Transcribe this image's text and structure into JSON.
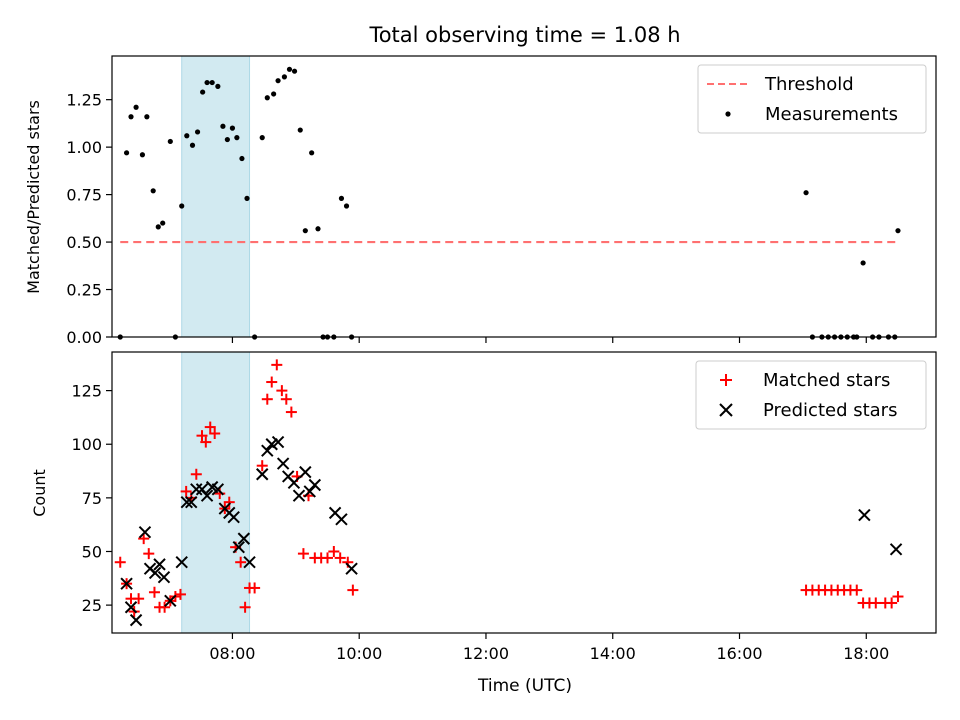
{
  "chart_data": [
    {
      "type": "scatter",
      "title": "Total observing time = 1.08 h",
      "ylabel": "Matched/Predicted stars",
      "xlabel": "",
      "xlim": [
        6.1,
        19.1
      ],
      "ylim": [
        0,
        1.48
      ],
      "ytick_values": [
        0,
        0.25,
        0.5,
        0.75,
        1.0,
        1.25
      ],
      "yticks": [
        "0.00",
        "0.25",
        "0.50",
        "0.75",
        "1.00",
        "1.25"
      ],
      "xtick_values": [
        6,
        8,
        10,
        12,
        14,
        16,
        18
      ],
      "xtick_labels_visible": false,
      "shaded_region": {
        "x0": 7.2,
        "x1": 8.27,
        "color": "#add8e6"
      },
      "legend": {
        "position": "top-right",
        "entries": [
          "Threshold",
          "Measurements"
        ]
      },
      "series": [
        {
          "name": "Threshold",
          "kind": "line",
          "style": "dashed",
          "color": "#ff7070",
          "x": [
            6.23,
            18.5
          ],
          "y": [
            0.5,
            0.5
          ]
        },
        {
          "name": "Measurements",
          "kind": "scatter",
          "color": "#000000",
          "x": [
            6.23,
            6.33,
            6.4,
            6.48,
            6.58,
            6.65,
            6.75,
            6.83,
            6.9,
            7.02,
            7.1,
            7.2,
            7.28,
            7.37,
            7.45,
            7.53,
            7.6,
            7.68,
            7.77,
            7.85,
            7.92,
            8.0,
            8.07,
            8.15,
            8.23,
            8.35,
            8.47,
            8.55,
            8.65,
            8.72,
            8.82,
            8.9,
            8.98,
            9.07,
            9.15,
            9.25,
            9.35,
            9.43,
            9.5,
            9.6,
            9.72,
            9.8,
            9.88,
            17.05,
            17.15,
            17.3,
            17.4,
            17.5,
            17.6,
            17.7,
            17.8,
            17.85,
            17.95,
            18.1,
            18.2,
            18.35,
            18.45,
            18.5
          ],
          "y": [
            0.0,
            0.97,
            1.16,
            1.21,
            0.96,
            1.16,
            0.77,
            0.58,
            0.6,
            1.03,
            0.0,
            0.69,
            1.06,
            1.01,
            1.08,
            1.29,
            1.34,
            1.34,
            1.32,
            1.11,
            1.04,
            1.1,
            1.05,
            0.94,
            0.73,
            0.0,
            1.05,
            1.26,
            1.28,
            1.35,
            1.37,
            1.41,
            1.4,
            1.09,
            0.56,
            0.97,
            0.57,
            0.0,
            0.0,
            0.0,
            0.73,
            0.69,
            0.0,
            0.76,
            0.0,
            0.0,
            0.0,
            0.0,
            0.0,
            0.0,
            0.0,
            0.0,
            0.39,
            0.0,
            0.0,
            0.0,
            0.0,
            0.56
          ]
        }
      ]
    },
    {
      "type": "scatter",
      "title": "",
      "ylabel": "Count",
      "xlabel": "Time (UTC)",
      "xlim": [
        6.1,
        19.1
      ],
      "ylim": [
        12,
        143
      ],
      "ytick_values": [
        25,
        50,
        75,
        100,
        125
      ],
      "yticks": [
        "25",
        "50",
        "75",
        "100",
        "125"
      ],
      "xtick_values": [
        6,
        8,
        10,
        12,
        14,
        16,
        18
      ],
      "xticks": [
        "06:00",
        "08:00",
        "10:00",
        "12:00",
        "14:00",
        "16:00",
        "18:00"
      ],
      "shaded_region": {
        "x0": 7.2,
        "x1": 8.27,
        "color": "#add8e6"
      },
      "legend": {
        "position": "top-right",
        "entries": [
          "Matched stars",
          "Predicted stars"
        ]
      },
      "series": [
        {
          "name": "Matched stars",
          "marker": "+",
          "color": "#ff0000",
          "x": [
            6.23,
            6.33,
            6.4,
            6.45,
            6.52,
            6.6,
            6.68,
            6.77,
            6.85,
            6.93,
            7.02,
            7.1,
            7.18,
            7.27,
            7.35,
            7.43,
            7.52,
            7.58,
            7.65,
            7.72,
            7.8,
            7.88,
            7.95,
            8.05,
            8.13,
            8.2,
            8.27,
            8.35,
            8.47,
            8.55,
            8.62,
            8.7,
            8.78,
            8.85,
            8.93,
            9.02,
            9.12,
            9.2,
            9.3,
            9.4,
            9.5,
            9.6,
            9.7,
            9.82,
            9.9,
            17.05,
            17.15,
            17.25,
            17.35,
            17.45,
            17.55,
            17.65,
            17.75,
            17.85,
            17.95,
            18.05,
            18.15,
            18.3,
            18.4,
            18.5
          ],
          "y": [
            45,
            35,
            28,
            22,
            28,
            56,
            49,
            31,
            24,
            24,
            27,
            29,
            30,
            78,
            75,
            86,
            104,
            101,
            108,
            105,
            77,
            70,
            73,
            52,
            45,
            24,
            33,
            33,
            90,
            121,
            129,
            137,
            125,
            121,
            115,
            85,
            49,
            76,
            47,
            47,
            47,
            50,
            47,
            45,
            32,
            32,
            32,
            32,
            32,
            32,
            32,
            32,
            32,
            32,
            26,
            26,
            26,
            26,
            26,
            29
          ]
        },
        {
          "name": "Predicted stars",
          "marker": "x",
          "color": "#000000",
          "x": [
            6.33,
            6.4,
            6.48,
            6.62,
            6.7,
            6.78,
            6.85,
            6.92,
            7.02,
            7.2,
            7.28,
            7.35,
            7.43,
            7.52,
            7.6,
            7.68,
            7.77,
            7.88,
            7.95,
            8.02,
            8.1,
            8.18,
            8.27,
            8.47,
            8.55,
            8.62,
            8.72,
            8.8,
            8.88,
            8.97,
            9.05,
            9.15,
            9.22,
            9.3,
            9.62,
            9.72,
            9.88,
            17.97,
            18.47
          ],
          "y": [
            35,
            24,
            18,
            59,
            42,
            40,
            44,
            38,
            27,
            45,
            73,
            73,
            79,
            79,
            76,
            80,
            79,
            70,
            68,
            66,
            52,
            56,
            45,
            86,
            97,
            100,
            101,
            91,
            85,
            82,
            76,
            87,
            78,
            81,
            68,
            65,
            42,
            67,
            51
          ]
        }
      ]
    }
  ]
}
